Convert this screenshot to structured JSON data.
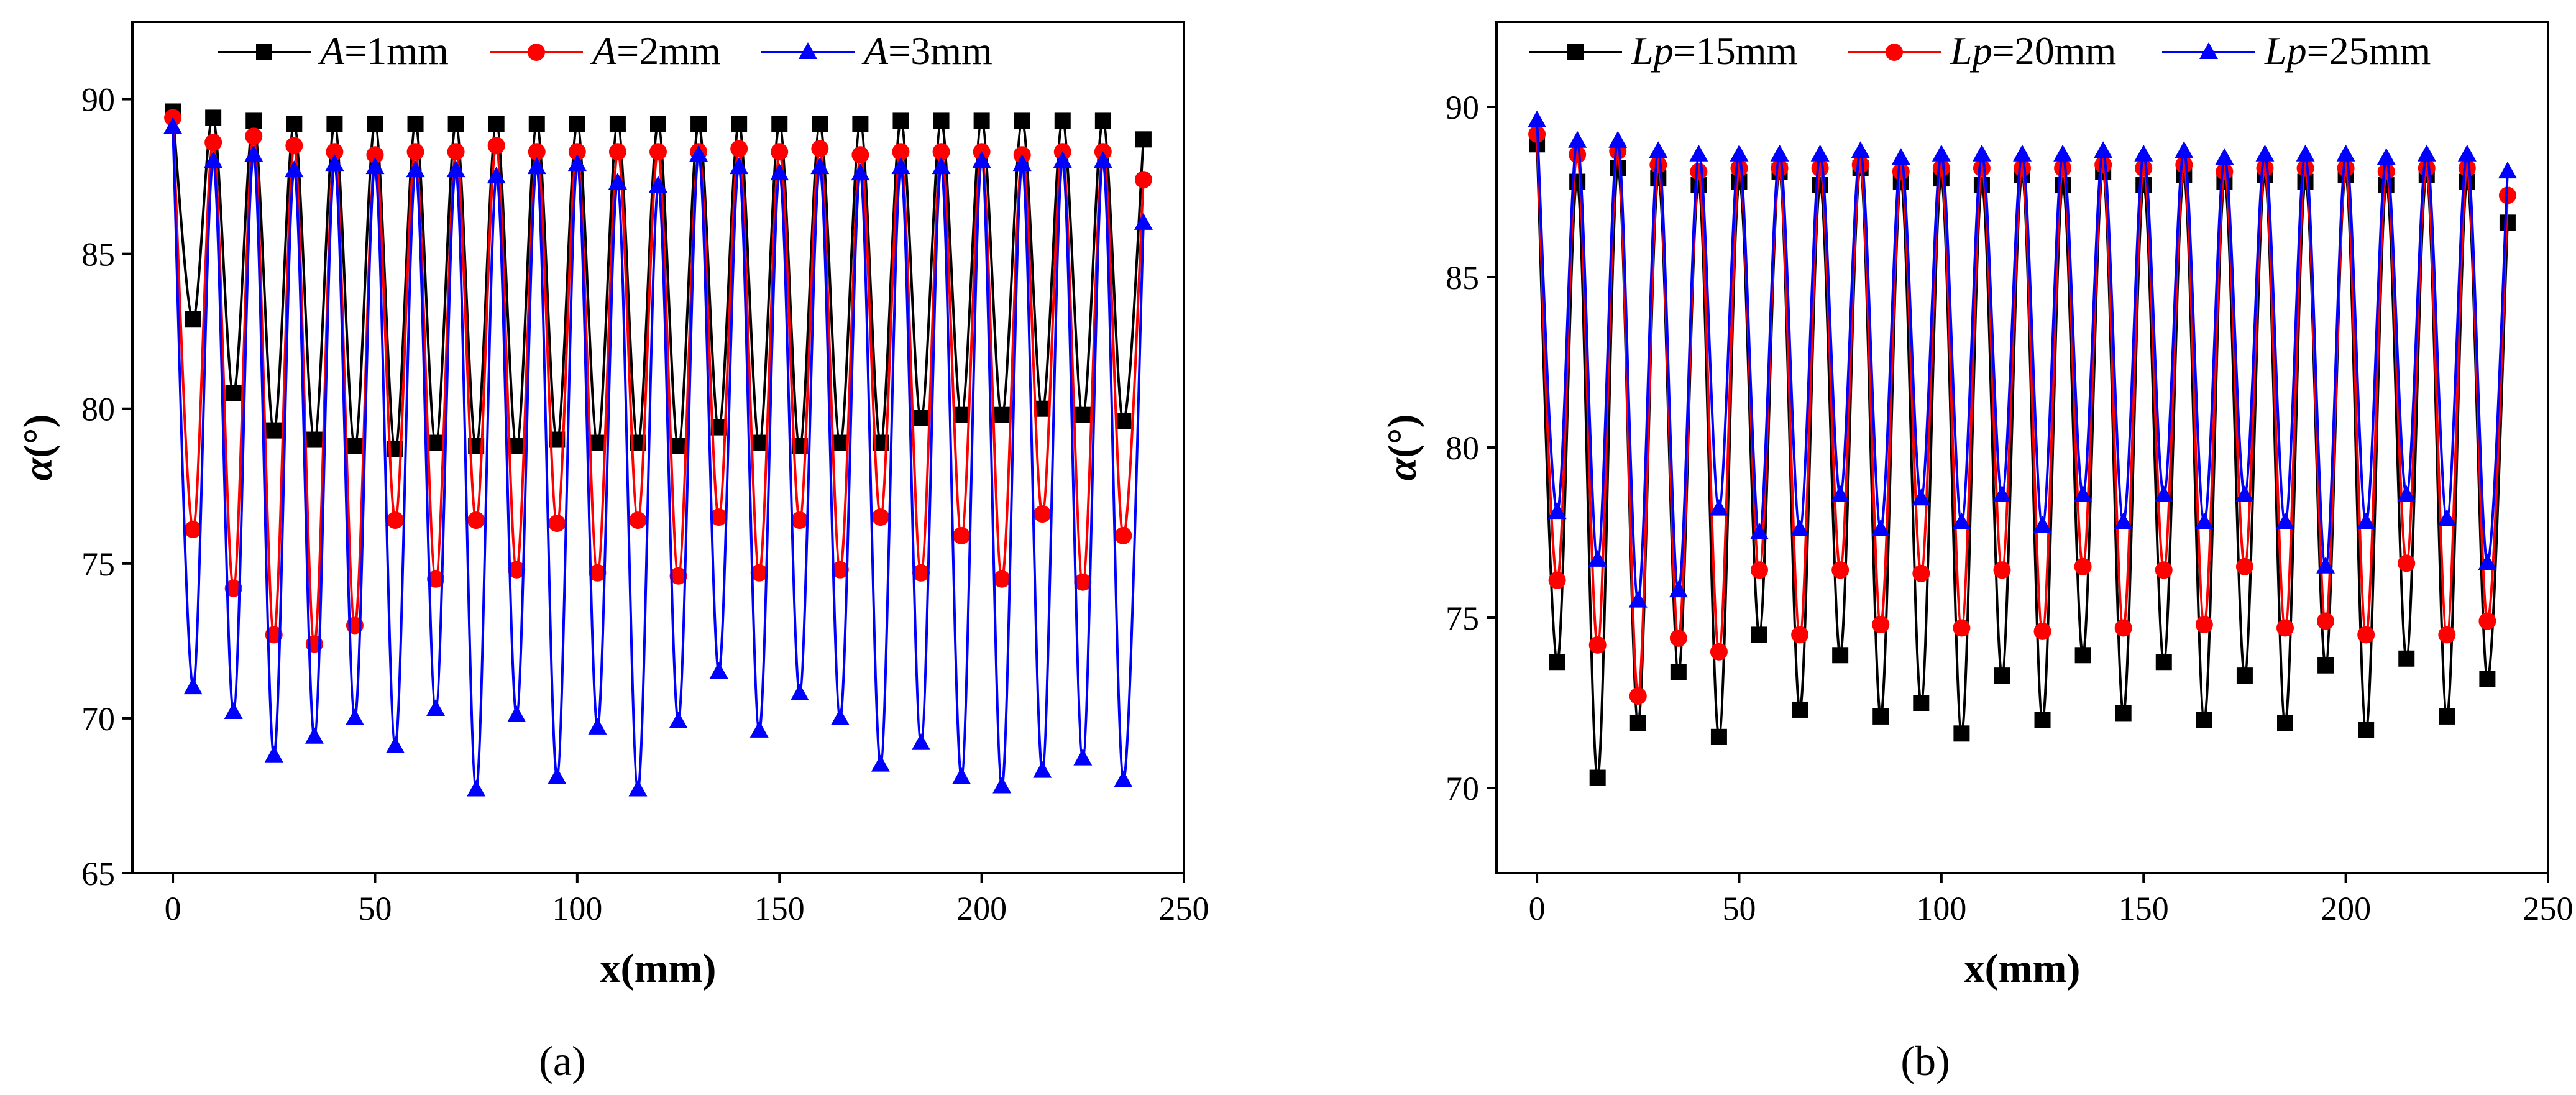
{
  "figure": {
    "panel_labels": [
      "(a)",
      "(b)"
    ]
  },
  "chart_data": [
    {
      "type": "line",
      "panel": "(a)",
      "title": "",
      "xlabel": "x(mm)",
      "ylabel_symbol": "α",
      "ylabel_unit": "(°)",
      "xlim": [
        -10,
        250
      ],
      "ylim": [
        65,
        92.5
      ],
      "xticks": [
        0,
        50,
        100,
        150,
        200,
        250
      ],
      "yticks": [
        65,
        70,
        75,
        80,
        85,
        90
      ],
      "legend_position": "top",
      "x": [
        0,
        5,
        10,
        15,
        20,
        25,
        30,
        35,
        40,
        45,
        50,
        55,
        60,
        65,
        70,
        75,
        80,
        85,
        90,
        95,
        100,
        105,
        110,
        115,
        120,
        125,
        130,
        135,
        140,
        145,
        150,
        155,
        160,
        165,
        170,
        175,
        180,
        185,
        190,
        195,
        200,
        205,
        210,
        215,
        220,
        225,
        230,
        235,
        240
      ],
      "series": [
        {
          "name_var": "A",
          "name_rest": "=1mm",
          "color": "#000000",
          "marker": "square",
          "values": [
            89.6,
            82.9,
            89.4,
            80.5,
            89.3,
            79.3,
            89.2,
            79.0,
            89.2,
            78.8,
            89.2,
            78.7,
            89.2,
            78.9,
            89.2,
            78.8,
            89.2,
            78.8,
            89.2,
            79.0,
            89.2,
            78.9,
            89.2,
            78.9,
            89.2,
            78.8,
            89.2,
            79.4,
            89.2,
            78.9,
            89.2,
            78.8,
            89.2,
            78.9,
            89.2,
            78.9,
            89.3,
            79.7,
            89.3,
            79.8,
            89.3,
            79.8,
            89.3,
            80.0,
            89.3,
            79.8,
            89.3,
            79.6,
            88.7
          ]
        },
        {
          "name_var": "A",
          "name_rest": "=2mm",
          "color": "#ff0000",
          "marker": "circle",
          "values": [
            89.4,
            76.1,
            88.6,
            74.2,
            88.8,
            72.7,
            88.5,
            72.4,
            88.3,
            73.0,
            88.2,
            76.4,
            88.3,
            74.5,
            88.3,
            76.4,
            88.5,
            74.8,
            88.3,
            76.3,
            88.3,
            74.7,
            88.3,
            76.4,
            88.3,
            74.6,
            88.3,
            76.5,
            88.4,
            74.7,
            88.3,
            76.4,
            88.4,
            74.8,
            88.2,
            76.5,
            88.3,
            74.7,
            88.3,
            75.9,
            88.3,
            74.5,
            88.2,
            76.6,
            88.3,
            74.4,
            88.3,
            75.9,
            87.4
          ]
        },
        {
          "name_var": "A",
          "name_rest": "=3mm",
          "color": "#0000ff",
          "marker": "triangle",
          "values": [
            89.1,
            71.0,
            88.0,
            70.2,
            88.2,
            68.8,
            87.7,
            69.4,
            87.9,
            70.0,
            87.8,
            69.1,
            87.7,
            70.3,
            87.7,
            67.7,
            87.5,
            70.1,
            87.8,
            68.1,
            87.9,
            69.7,
            87.3,
            67.7,
            87.2,
            69.9,
            88.2,
            71.5,
            87.8,
            69.6,
            87.6,
            70.8,
            87.8,
            70.0,
            87.6,
            68.5,
            87.8,
            69.2,
            87.8,
            68.1,
            88.0,
            67.8,
            87.9,
            68.3,
            88.0,
            68.7,
            88.0,
            68.0,
            86.0
          ]
        }
      ]
    },
    {
      "type": "line",
      "panel": "(b)",
      "title": "",
      "xlabel": "x(mm)",
      "ylabel_symbol": "α",
      "ylabel_unit": "(°)",
      "xlim": [
        -10,
        250
      ],
      "ylim": [
        67.5,
        92.5
      ],
      "xticks": [
        0,
        50,
        100,
        150,
        200,
        250
      ],
      "yticks": [
        70,
        75,
        80,
        85,
        90
      ],
      "legend_position": "top",
      "x": [
        0,
        5,
        10,
        15,
        20,
        25,
        30,
        35,
        40,
        45,
        50,
        55,
        60,
        65,
        70,
        75,
        80,
        85,
        90,
        95,
        100,
        105,
        110,
        115,
        120,
        125,
        130,
        135,
        140,
        145,
        150,
        155,
        160,
        165,
        170,
        175,
        180,
        185,
        190,
        195,
        200,
        205,
        210,
        215,
        220,
        225,
        230,
        235,
        240
      ],
      "series": [
        {
          "name_var": "Lp",
          "name_rest": "=15mm",
          "color": "#000000",
          "marker": "square",
          "values": [
            88.9,
            73.7,
            87.8,
            70.3,
            88.2,
            71.9,
            87.9,
            73.4,
            87.7,
            71.5,
            87.8,
            74.5,
            88.1,
            72.3,
            87.7,
            73.9,
            88.2,
            72.1,
            87.8,
            72.5,
            87.9,
            71.6,
            87.7,
            73.3,
            88.0,
            72.0,
            87.7,
            73.9,
            88.1,
            72.2,
            87.7,
            73.7,
            88.0,
            72.0,
            87.8,
            73.3,
            88.0,
            71.9,
            87.8,
            73.6,
            88.0,
            71.7,
            87.7,
            73.8,
            88.0,
            72.1,
            87.8,
            73.2,
            86.6
          ]
        },
        {
          "name_var": "Lp",
          "name_rest": "=20mm",
          "color": "#ff0000",
          "marker": "circle",
          "values": [
            89.2,
            76.1,
            88.6,
            74.2,
            88.7,
            72.7,
            88.3,
            74.4,
            88.1,
            74.0,
            88.2,
            76.4,
            88.2,
            74.5,
            88.2,
            76.4,
            88.3,
            74.8,
            88.1,
            76.3,
            88.2,
            74.7,
            88.2,
            76.4,
            88.2,
            74.6,
            88.2,
            76.5,
            88.3,
            74.7,
            88.2,
            76.4,
            88.3,
            74.8,
            88.1,
            76.5,
            88.2,
            74.7,
            88.2,
            74.9,
            88.2,
            74.5,
            88.1,
            76.6,
            88.2,
            74.5,
            88.2,
            74.9,
            87.4
          ]
        },
        {
          "name_var": "Lp",
          "name_rest": "=25mm",
          "color": "#0000ff",
          "marker": "triangle",
          "values": [
            89.6,
            78.1,
            89.0,
            76.7,
            89.0,
            75.5,
            88.7,
            75.8,
            88.6,
            78.2,
            88.6,
            77.5,
            88.6,
            77.6,
            88.6,
            78.6,
            88.7,
            77.6,
            88.5,
            78.5,
            88.6,
            77.8,
            88.6,
            78.6,
            88.6,
            77.7,
            88.6,
            78.6,
            88.7,
            77.8,
            88.6,
            78.6,
            88.7,
            77.8,
            88.5,
            78.6,
            88.6,
            77.8,
            88.6,
            76.5,
            88.6,
            77.8,
            88.5,
            78.6,
            88.6,
            77.9,
            88.6,
            76.6,
            88.1
          ]
        }
      ]
    }
  ]
}
